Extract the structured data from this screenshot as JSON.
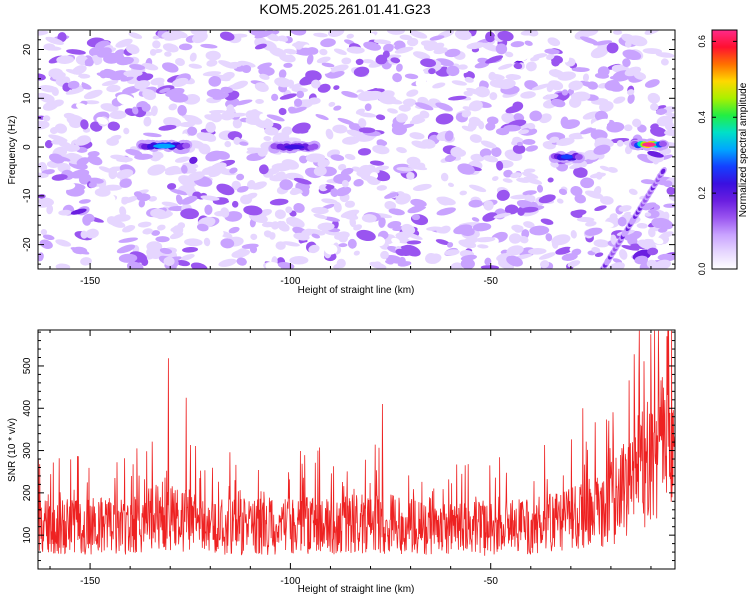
{
  "title": "KOM5.2025.261.01.41.G23",
  "colors": {
    "snr_line": "#ee2222",
    "axis": "#000000",
    "colormap": [
      "#ffffff",
      "#e6d6ff",
      "#c9a3ff",
      "#9a55f0",
      "#6a1ee0",
      "#3a10e0",
      "#1440ff",
      "#00a6ff",
      "#00e0c8",
      "#22ee44",
      "#aaf000",
      "#ffd800",
      "#ff7000",
      "#ff1030",
      "#ff2a8a"
    ]
  },
  "chart_data": [
    {
      "type": "heatmap",
      "name": "spectrogram",
      "xlabel": "Height of straight line (km)",
      "ylabel": "Frequency (Hz)",
      "xlim": [
        -163,
        -4
      ],
      "ylim": [
        -25,
        24
      ],
      "xticks": [
        -150,
        -100,
        -50
      ],
      "xtick_labels": [
        "-150",
        "-100",
        "-50"
      ],
      "yticks": [
        -20,
        -10,
        0,
        10,
        20
      ],
      "ytick_labels": [
        "-20",
        "-10",
        "0",
        "10",
        "20"
      ],
      "colorbar": {
        "label": "Normalized spectral amplitude",
        "range": [
          0.0,
          0.63
        ],
        "ticks": [
          0.0,
          0.2,
          0.4,
          0.6
        ],
        "tick_labels": [
          "0.0",
          "0.2",
          "0.4",
          "0.6"
        ]
      },
      "features": [
        {
          "description": "streak at 0 Hz",
          "x": [
            -137,
            -126
          ],
          "y": 0.2,
          "peak": 0.32
        },
        {
          "description": "streak at 0 Hz",
          "x": [
            -104,
            -94
          ],
          "y": 0.0,
          "peak": 0.22
        },
        {
          "description": "streak near 0 Hz",
          "x": [
            -34,
            -28
          ],
          "y": -2.0,
          "peak": 0.28
        },
        {
          "description": "streak at 0 Hz",
          "x": [
            -14,
            -7
          ],
          "y": 0.5,
          "peak": 0.63
        },
        {
          "description": "diagonal ridge",
          "x": [
            -22,
            -7
          ],
          "y": [
            -25,
            -5
          ],
          "peak": 0.2
        }
      ]
    },
    {
      "type": "line",
      "name": "snr",
      "xlabel": "Height of straight line (km)",
      "ylabel": "SNR (10 * v/v)",
      "xlim": [
        -163,
        -4
      ],
      "ylim": [
        20,
        585
      ],
      "xticks": [
        -150,
        -100,
        -50
      ],
      "xtick_labels": [
        "-150",
        "-100",
        "-50"
      ],
      "yticks": [
        100,
        200,
        300,
        400,
        500
      ],
      "ytick_labels": [
        "100",
        "200",
        "300",
        "400",
        "500"
      ],
      "baseline_profile": {
        "x": [
          -163,
          -150,
          -140,
          -132,
          -120,
          -100,
          -80,
          -70,
          -60,
          -50,
          -40,
          -30,
          -20,
          -12,
          -8,
          -4
        ],
        "y": [
          150,
          150,
          155,
          185,
          150,
          150,
          160,
          155,
          150,
          145,
          150,
          170,
          210,
          330,
          380,
          400
        ]
      },
      "peaks": [
        {
          "x": -130.5,
          "y": 518
        },
        {
          "x": -126,
          "y": 425
        },
        {
          "x": -77,
          "y": 410
        },
        {
          "x": -27,
          "y": 400
        },
        {
          "x": -13,
          "y": 475
        },
        {
          "x": -10,
          "y": 575
        },
        {
          "x": -6,
          "y": 570
        }
      ]
    }
  ]
}
